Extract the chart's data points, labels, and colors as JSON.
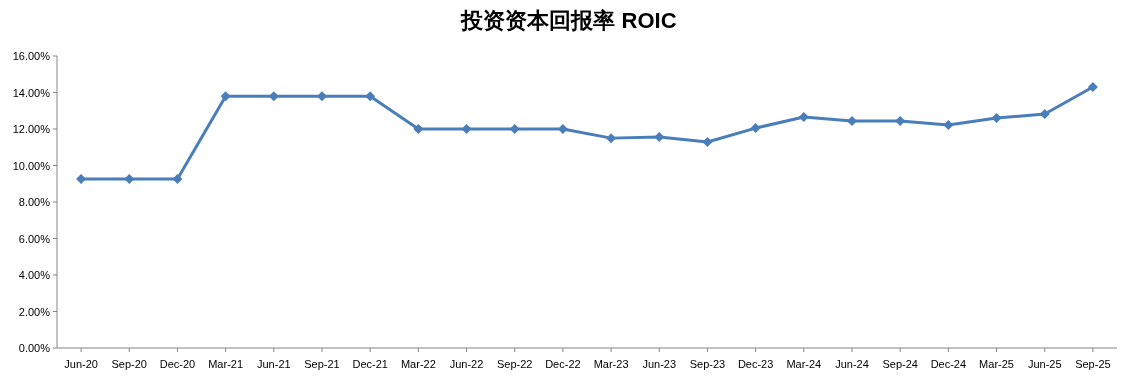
{
  "chart_data": {
    "type": "line",
    "title": "投资资本回报率 ROIC",
    "categories": [
      "Jun-20",
      "Sep-20",
      "Dec-20",
      "Mar-21",
      "Jun-21",
      "Sep-21",
      "Dec-21",
      "Mar-22",
      "Jun-22",
      "Sep-22",
      "Dec-22",
      "Mar-23",
      "Jun-23",
      "Sep-23",
      "Dec-23",
      "Mar-24",
      "Jun-24",
      "Sep-24",
      "Dec-24",
      "Mar-25",
      "Jun-25",
      "Sep-25"
    ],
    "series": [
      {
        "color": "#4a7ebb",
        "values": [
          9.26,
          9.26,
          9.26,
          13.8,
          13.8,
          13.8,
          13.8,
          12.0,
          12.0,
          12.0,
          12.0,
          11.5,
          11.56,
          11.29,
          12.05,
          12.66,
          12.44,
          12.44,
          12.22,
          12.6,
          12.82,
          14.3
        ]
      }
    ],
    "ylim": [
      0,
      16
    ],
    "yticks": [
      {
        "value": 0,
        "label": "0.00%"
      },
      {
        "value": 2,
        "label": "2.00%"
      },
      {
        "value": 4,
        "label": "4.00%"
      },
      {
        "value": 6,
        "label": "6.00%"
      },
      {
        "value": 8,
        "label": "8.00%"
      },
      {
        "value": 10,
        "label": "10.00%"
      },
      {
        "value": 12,
        "label": "12.00%"
      },
      {
        "value": 14,
        "label": "14.00%"
      },
      {
        "value": 16,
        "label": "16.00%"
      }
    ],
    "marker": "diamond",
    "line_style": "solid",
    "grid": false
  }
}
